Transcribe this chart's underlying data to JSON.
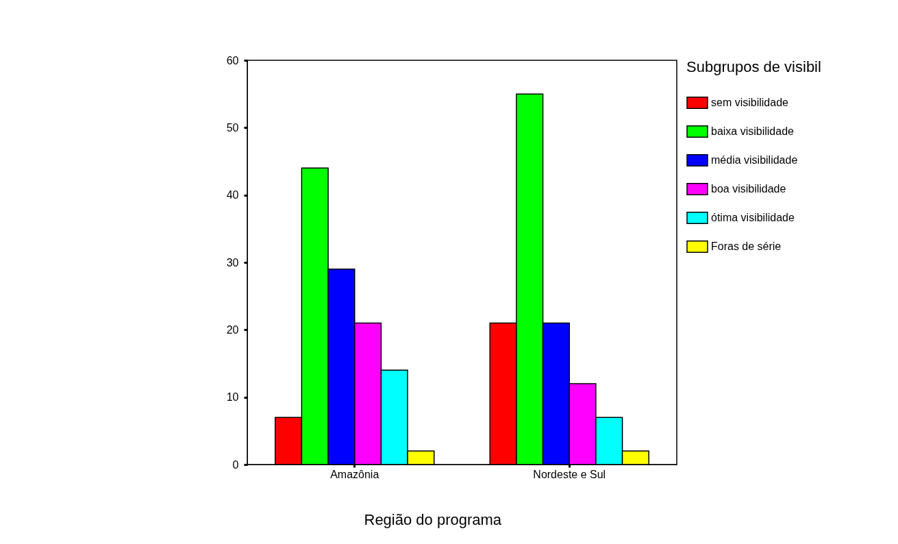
{
  "chart_data": {
    "type": "bar",
    "xlabel": "Região do programa",
    "legend_title": "Subgrupos de visibil",
    "legend": "right",
    "categories": [
      "Amazônia",
      "Nordeste e Sul"
    ],
    "series": [
      {
        "name": "sem visibilidade",
        "color": "#ff0000",
        "values": [
          7,
          21
        ]
      },
      {
        "name": "baixa visibilidade",
        "color": "#00ff00",
        "values": [
          44,
          55
        ]
      },
      {
        "name": "média visibilidade",
        "color": "#0000ff",
        "values": [
          29,
          21
        ]
      },
      {
        "name": "boa visibilidade",
        "color": "#ff00ff",
        "values": [
          21,
          12
        ]
      },
      {
        "name": "ótima visibilidade",
        "color": "#00ffff",
        "values": [
          14,
          7
        ]
      },
      {
        "name": "Foras de série",
        "color": "#ffff00",
        "values": [
          2,
          2
        ]
      }
    ],
    "ylim": [
      0,
      60
    ],
    "yticks": [
      0,
      10,
      20,
      30,
      40,
      50,
      60
    ],
    "grid": false
  }
}
